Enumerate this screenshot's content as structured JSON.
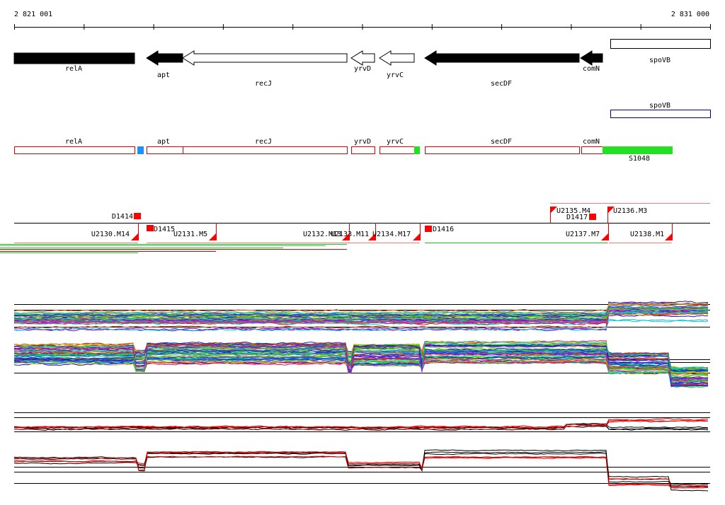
{
  "ruler": {
    "start": "2 821 001",
    "end": "2 831 000"
  },
  "gene_track": {
    "genes": [
      {
        "label": "relA"
      },
      {
        "label": "apt"
      },
      {
        "label": "recJ"
      },
      {
        "label": "yrvD"
      },
      {
        "label": "yrvC"
      },
      {
        "label": "secDF"
      },
      {
        "label": "comN"
      },
      {
        "label": "spoVB"
      }
    ]
  },
  "annotation_track": {
    "label": "spoVB"
  },
  "feature_track": {
    "features": [
      {
        "label": "relA"
      },
      {
        "label": "apt"
      },
      {
        "label": "recJ"
      },
      {
        "label": "yrvD"
      },
      {
        "label": "yrvC"
      },
      {
        "label": "secDF"
      },
      {
        "label": "comN"
      },
      {
        "label": "S1048"
      }
    ]
  },
  "segment_track": {
    "segments": [
      {
        "label": "D1414"
      },
      {
        "label": "U2130.M14"
      },
      {
        "label": "D1415"
      },
      {
        "label": "U2131.M5"
      },
      {
        "label": "U2132.M13"
      },
      {
        "label": "U2133.M11"
      },
      {
        "label": "U2134.M17"
      },
      {
        "label": "D1416"
      },
      {
        "label": "U2135.M4"
      },
      {
        "label": "D1417"
      },
      {
        "label": "U2136.M3"
      },
      {
        "label": "U2137.M7"
      },
      {
        "label": "U2138.M1"
      }
    ]
  }
}
